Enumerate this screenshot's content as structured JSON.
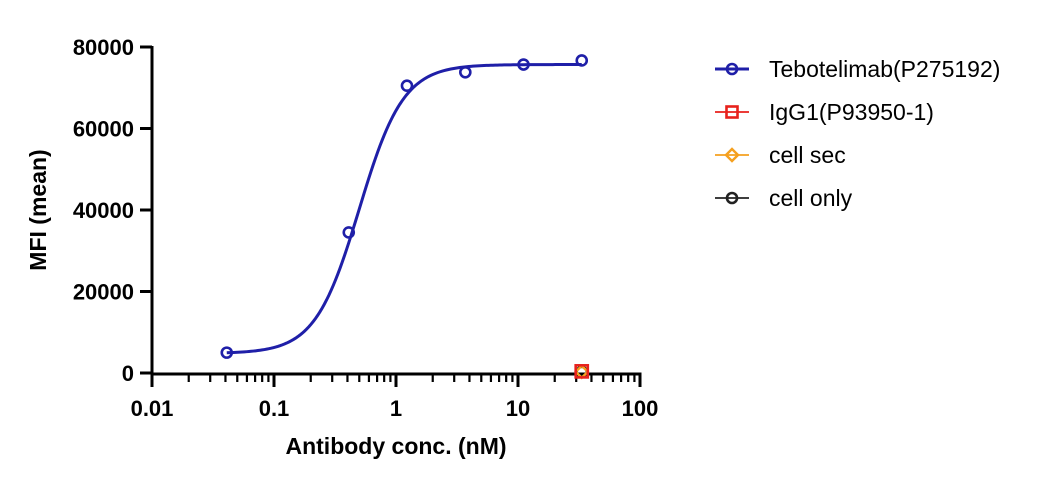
{
  "chart_data": {
    "type": "scatter",
    "xlabel": "Antibody conc. (nM)",
    "ylabel": "MFI (mean)",
    "x_scale": "log",
    "xlim": [
      0.01,
      100
    ],
    "ylim": [
      0,
      80000
    ],
    "x_ticks": [
      0.01,
      0.1,
      1,
      10,
      100
    ],
    "x_tick_labels": [
      "0.01",
      "0.1",
      "1",
      "10",
      "100"
    ],
    "y_ticks": [
      0,
      20000,
      40000,
      60000,
      80000
    ],
    "y_tick_labels": [
      "0",
      "20000",
      "40000",
      "60000",
      "80000"
    ],
    "grid": false,
    "legend_position": "right",
    "series": [
      {
        "name": "Tebotelimab(P275192)",
        "color": "#1f1fa8",
        "marker": "circle",
        "fit_curve": true,
        "x": [
          0.041,
          0.41,
          1.23,
          3.7,
          11.1,
          33.3
        ],
        "y": [
          5000,
          34500,
          70500,
          73800,
          75700,
          76700
        ]
      },
      {
        "name": "IgG1(P93950-1)",
        "color": "#e8211b",
        "marker": "square",
        "fit_curve": false,
        "x": [
          33.3
        ],
        "y": [
          400
        ]
      },
      {
        "name": "cell sec",
        "color": "#f5a01f",
        "marker": "diamond",
        "fit_curve": false,
        "x": [
          33.3
        ],
        "y": [
          300
        ]
      },
      {
        "name": "cell only",
        "color": "#222222",
        "marker": "circle",
        "fit_curve": false,
        "x": [
          33.3
        ],
        "y": [
          300
        ]
      }
    ],
    "fit": {
      "series": "Tebotelimab(P275192)",
      "model": "4PL",
      "bottom": 4800,
      "top": 75700,
      "ec50": 0.5,
      "hill": 2.4
    }
  }
}
